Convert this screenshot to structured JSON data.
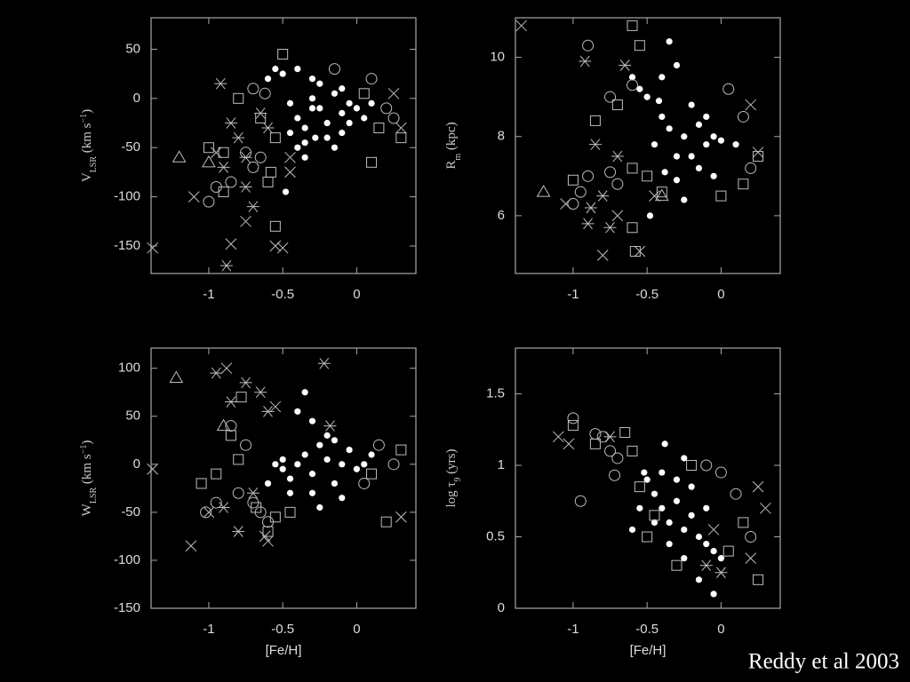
{
  "caption": "Reddy et al 2003",
  "chart_data": [
    {
      "type": "scatter",
      "ylabel": [
        {
          "text": "V"
        },
        {
          "text": "LSR",
          "sub": true
        },
        {
          "text": " (km s"
        },
        {
          "text": "−1",
          "sup": true
        },
        {
          "text": ")"
        }
      ],
      "xlim": [
        -1.39,
        0.4
      ],
      "xticks": [
        -1,
        -0.5,
        0
      ],
      "ylim": [
        -178,
        82
      ],
      "yticks": [
        50,
        0,
        -50,
        -100,
        -150
      ],
      "series": [
        {
          "marker": "dot",
          "color": "#ffffff",
          "x": [
            -0.4,
            -0.35,
            -0.3,
            -0.25,
            -0.2,
            -0.15,
            -0.1,
            -0.05,
            0,
            -0.45,
            -0.35,
            -0.3,
            -0.25,
            -0.4,
            -0.5,
            -0.55,
            -0.35,
            -0.2,
            -0.1,
            0.05,
            -0.3,
            -0.48,
            -0.4,
            -0.6,
            -0.15,
            -0.28,
            -0.1,
            -0.05,
            0.1,
            -0.45
          ],
          "values": [
            -20,
            -30,
            0,
            -10,
            -25,
            5,
            -15,
            -5,
            -10,
            -35,
            -45,
            20,
            15,
            30,
            25,
            30,
            -60,
            -40,
            -35,
            -20,
            -10,
            -95,
            -50,
            20,
            -50,
            -40,
            10,
            -25,
            -5,
            -5
          ]
        },
        {
          "marker": "circle",
          "color": "#bdbdbd",
          "x": [
            -0.95,
            -1.0,
            -0.85,
            -0.7,
            -0.65,
            -0.62,
            -0.7,
            -0.75,
            0.2,
            0.1,
            -0.15,
            0.25
          ],
          "values": [
            -90,
            -105,
            -85,
            -70,
            -60,
            5,
            10,
            -55,
            -10,
            20,
            30,
            -20
          ]
        },
        {
          "marker": "square",
          "color": "#bdbdbd",
          "x": [
            -1.0,
            -0.9,
            -0.8,
            -0.65,
            -0.5,
            -0.55,
            -0.58,
            -0.6,
            -0.55,
            -0.9,
            0.15,
            0.05,
            0.3,
            0.1
          ],
          "values": [
            -50,
            -55,
            0,
            -20,
            45,
            -40,
            -75,
            -85,
            -130,
            -95,
            -30,
            5,
            -40,
            -65
          ]
        },
        {
          "marker": "cross",
          "color": "#bdbdbd",
          "x": [
            -1.38,
            -1.1,
            -0.85,
            -0.75,
            -0.55,
            -0.5,
            -0.45,
            -0.45,
            0.25,
            0.3,
            -0.95
          ],
          "values": [
            -152,
            -100,
            -148,
            -125,
            -150,
            -152,
            -60,
            -75,
            5,
            -30,
            -55
          ]
        },
        {
          "marker": "star",
          "color": "#bdbdbd",
          "x": [
            -0.92,
            -0.85,
            -0.8,
            -0.75,
            -0.88,
            -0.75,
            -0.7,
            -0.6,
            -0.65,
            -0.9
          ],
          "values": [
            15,
            -25,
            -40,
            -60,
            -170,
            -90,
            -110,
            -30,
            -15,
            -70
          ]
        },
        {
          "marker": "triangle",
          "color": "#bdbdbd",
          "x": [
            -1.2,
            -1.0
          ],
          "values": [
            -60,
            -65
          ]
        }
      ]
    },
    {
      "type": "scatter",
      "ylabel": [
        {
          "text": "R"
        },
        {
          "text": "m",
          "sub": true
        },
        {
          "text": " (kpc)"
        }
      ],
      "xlim": [
        -1.39,
        0.4
      ],
      "xticks": [
        -1,
        -0.5,
        0
      ],
      "ylim": [
        4.54,
        11.0
      ],
      "yticks": [
        10,
        8,
        6
      ],
      "series": [
        {
          "marker": "dot",
          "color": "#ffffff",
          "x": [
            -0.5,
            -0.4,
            -0.35,
            -0.3,
            -0.25,
            -0.2,
            -0.15,
            -0.1,
            -0.05,
            0,
            -0.45,
            -0.38,
            -0.3,
            -0.35,
            -0.4,
            -0.55,
            -0.6,
            -0.2,
            -0.1,
            0.1,
            -0.48,
            -0.25,
            -0.15,
            -0.3,
            -0.05,
            -0.42
          ],
          "values": [
            9.0,
            8.5,
            8.2,
            7.5,
            8.0,
            8.8,
            8.3,
            7.8,
            8.0,
            7.9,
            7.8,
            7.1,
            6.9,
            10.4,
            9.5,
            9.2,
            9.5,
            7.5,
            8.5,
            7.8,
            6.0,
            6.4,
            7.2,
            9.8,
            7.0,
            8.9
          ]
        },
        {
          "marker": "circle",
          "color": "#bdbdbd",
          "x": [
            -1.0,
            -0.95,
            -0.9,
            -0.75,
            -0.7,
            -0.6,
            -0.9,
            -0.75,
            0.15,
            0.2,
            0.05
          ],
          "values": [
            6.3,
            6.6,
            7.0,
            7.1,
            6.8,
            9.3,
            10.3,
            9.0,
            8.5,
            7.2,
            9.2
          ]
        },
        {
          "marker": "square",
          "color": "#bdbdbd",
          "x": [
            -1.0,
            -0.85,
            -0.7,
            -0.6,
            -0.6,
            -0.58,
            -0.55,
            -0.5,
            -0.4,
            0.15,
            0.25,
            0.0,
            -0.6
          ],
          "values": [
            6.9,
            8.4,
            8.8,
            7.2,
            5.7,
            5.1,
            10.3,
            7.0,
            6.6,
            6.8,
            7.5,
            6.5,
            10.8
          ]
        },
        {
          "marker": "cross",
          "color": "#bdbdbd",
          "x": [
            -1.35,
            -1.05,
            -0.8,
            -0.55,
            -0.45,
            0.25,
            0.2,
            -0.7
          ],
          "values": [
            10.8,
            6.3,
            5.0,
            5.1,
            6.5,
            7.6,
            8.8,
            6.0
          ]
        },
        {
          "marker": "star",
          "color": "#bdbdbd",
          "x": [
            -0.92,
            -0.85,
            -0.9,
            -0.8,
            -0.75,
            -0.7,
            -0.65,
            -0.88
          ],
          "values": [
            9.9,
            7.8,
            5.8,
            6.5,
            5.7,
            7.5,
            9.8,
            6.2
          ]
        },
        {
          "marker": "triangle",
          "color": "#bdbdbd",
          "x": [
            -1.2,
            -0.4
          ],
          "values": [
            6.6,
            6.5
          ]
        }
      ]
    },
    {
      "type": "scatter",
      "ylabel": [
        {
          "text": "W"
        },
        {
          "text": "LSR",
          "sub": true
        },
        {
          "text": " (km s"
        },
        {
          "text": "−1",
          "sup": true
        },
        {
          "text": ")"
        }
      ],
      "xlabel": "[Fe/H]",
      "xlim": [
        -1.39,
        0.4
      ],
      "xticks": [
        -1,
        -0.5,
        0
      ],
      "ylim": [
        -150,
        121
      ],
      "yticks": [
        100,
        50,
        0,
        -50,
        -100,
        -150
      ],
      "series": [
        {
          "marker": "dot",
          "color": "#ffffff",
          "x": [
            -0.4,
            -0.35,
            -0.3,
            -0.25,
            -0.2,
            -0.15,
            -0.1,
            -0.05,
            0,
            0.05,
            -0.45,
            -0.5,
            -0.55,
            -0.3,
            -0.35,
            -0.4,
            -0.2,
            -0.1,
            -0.25,
            -0.45,
            -0.6,
            -0.15,
            0.1,
            -0.3,
            -0.5
          ],
          "values": [
            0,
            10,
            -10,
            20,
            5,
            -20,
            0,
            15,
            -5,
            0,
            -15,
            5,
            0,
            -30,
            75,
            55,
            30,
            -35,
            -45,
            -30,
            -20,
            25,
            10,
            45,
            -5
          ]
        },
        {
          "marker": "circle",
          "color": "#bdbdbd",
          "x": [
            -1.02,
            -0.95,
            -0.8,
            -0.7,
            -0.65,
            -0.6,
            -0.85,
            -0.75,
            0.15,
            0.25,
            0.05
          ],
          "values": [
            -50,
            -40,
            -30,
            -40,
            -50,
            -60,
            40,
            20,
            20,
            0,
            -20
          ]
        },
        {
          "marker": "square",
          "color": "#bdbdbd",
          "x": [
            -1.05,
            -0.95,
            -0.85,
            -0.78,
            -0.68,
            -0.6,
            -0.55,
            -0.45,
            -0.8,
            0.1,
            0.2,
            0.3
          ],
          "values": [
            -20,
            -10,
            30,
            70,
            -45,
            -70,
            -55,
            -50,
            5,
            -10,
            -60,
            15
          ]
        },
        {
          "marker": "cross",
          "color": "#bdbdbd",
          "x": [
            -1.38,
            -1.12,
            -1.0,
            -0.88,
            -0.62,
            -0.6,
            0.3,
            -0.55
          ],
          "values": [
            -5,
            -85,
            -50,
            100,
            -75,
            -80,
            -55,
            60
          ]
        },
        {
          "marker": "star",
          "color": "#bdbdbd",
          "x": [
            -0.95,
            -0.85,
            -0.75,
            -0.65,
            -0.6,
            -0.8,
            -0.7,
            -0.9,
            -0.22,
            -0.18
          ],
          "values": [
            95,
            65,
            85,
            75,
            55,
            -70,
            -30,
            -45,
            105,
            40
          ]
        },
        {
          "marker": "triangle",
          "color": "#bdbdbd",
          "x": [
            -1.22,
            -0.9
          ],
          "values": [
            90,
            40
          ]
        }
      ]
    },
    {
      "type": "scatter",
      "ylabel": [
        {
          "text": "log τ"
        },
        {
          "text": "9",
          "sub": true
        },
        {
          "text": " (yrs)"
        }
      ],
      "xlabel": "[Fe/H]",
      "xlim": [
        -1.39,
        0.4
      ],
      "xticks": [
        -1,
        -0.5,
        0
      ],
      "ylim": [
        0,
        1.82
      ],
      "yticks": [
        1.5,
        1,
        0.5,
        0
      ],
      "series": [
        {
          "marker": "dot",
          "color": "#ffffff",
          "x": [
            -0.45,
            -0.4,
            -0.35,
            -0.3,
            -0.25,
            -0.2,
            -0.15,
            -0.1,
            -0.05,
            0,
            -0.5,
            -0.52,
            -0.38,
            -0.3,
            -0.2,
            -0.1,
            -0.45,
            -0.35,
            -0.25,
            -0.15,
            -0.05,
            -0.55,
            -0.6,
            -0.4,
            -0.25
          ],
          "values": [
            0.8,
            0.7,
            0.6,
            0.75,
            0.55,
            0.65,
            0.5,
            0.45,
            0.4,
            0.35,
            0.9,
            0.95,
            1.15,
            0.9,
            0.85,
            0.7,
            0.6,
            0.45,
            0.35,
            0.2,
            0.1,
            0.7,
            0.55,
            0.95,
            1.05
          ]
        },
        {
          "marker": "circle",
          "color": "#bdbdbd",
          "x": [
            -1.0,
            -0.85,
            -0.8,
            -0.75,
            -0.7,
            -0.72,
            -0.95,
            -0.1,
            0.1,
            0.2,
            0.0
          ],
          "values": [
            1.33,
            1.22,
            1.2,
            1.1,
            1.05,
            0.93,
            0.75,
            1.0,
            0.8,
            0.5,
            0.95
          ]
        },
        {
          "marker": "square",
          "color": "#bdbdbd",
          "x": [
            -0.85,
            -0.65,
            -0.6,
            -0.55,
            -0.5,
            -0.45,
            -0.3,
            0.05,
            0.15,
            0.25,
            -0.2,
            -1.0
          ],
          "values": [
            1.15,
            1.23,
            1.1,
            0.85,
            0.5,
            0.65,
            0.3,
            0.4,
            0.6,
            0.2,
            1.0,
            1.28
          ]
        },
        {
          "marker": "cross",
          "color": "#bdbdbd",
          "x": [
            -1.1,
            -1.03,
            0.25,
            0.2,
            -0.05,
            0.3
          ],
          "values": [
            1.2,
            1.15,
            0.85,
            0.35,
            0.55,
            0.7
          ]
        },
        {
          "marker": "star",
          "color": "#bdbdbd",
          "x": [
            -0.75,
            -0.1,
            0.0
          ],
          "values": [
            1.2,
            0.3,
            0.25
          ]
        }
      ]
    }
  ]
}
